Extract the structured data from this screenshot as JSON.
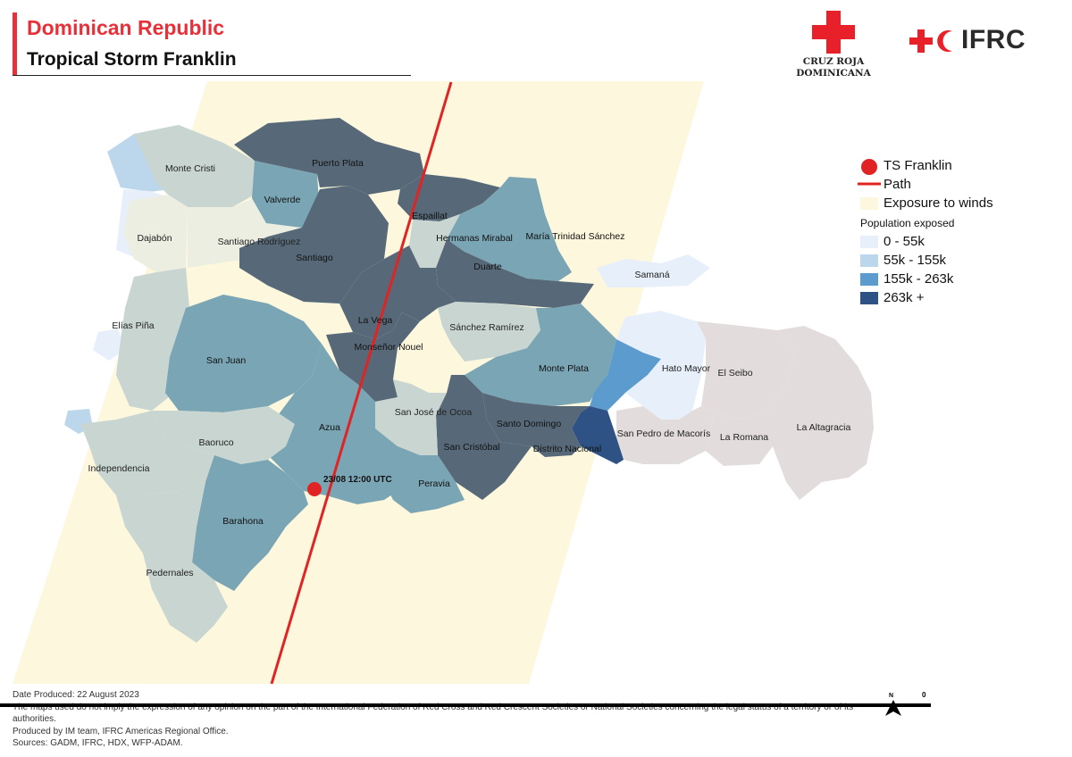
{
  "header": {
    "country": "Dominican Republic",
    "event": "Tropical Storm Franklin"
  },
  "logos": {
    "crd_text_line1": "CRUZ ROJA",
    "crd_text_line2": "DOMINICANA",
    "ifrc_text": "IFRC"
  },
  "colors": {
    "accent_red": "#e8303a",
    "exposure_zone": "#fdf7dd",
    "pop_0_55k": "#e7f0fa",
    "pop_55k_155k": "#bcd6ec",
    "pop_155k_263k": "#5b9bcd",
    "pop_263k_plus": "#2d5283",
    "province_dark": "#576978",
    "province_teal": "#7aa5b4",
    "province_sage": "#c8d5d1",
    "province_pale": "#eceee2",
    "province_outside": "#e2dcdd"
  },
  "provinces": {
    "monte_cristi": "Monte Cristi",
    "puerto_plata": "Puerto Plata",
    "valverde": "Valverde",
    "espaillat": "Espaillat",
    "dajabon": "Dajabón",
    "santiago_rodriguez": "Santiago Rodríguez",
    "santiago": "Santiago",
    "hermanas_mirabal": "Hermanas Mirabal",
    "maria_trinidad_sanchez": "María Trinidad Sánchez",
    "duarte": "Duarte",
    "samana": "Samaná",
    "la_vega": "La Vega",
    "elias_pina": "Elías Piña",
    "sanchez_ramirez": "Sánchez Ramírez",
    "monsenor_nouel": "Monseñor Nouel",
    "san_juan": "San Juan",
    "monte_plata": "Monte Plata",
    "hato_mayor": "Hato Mayor",
    "el_seibo": "El Seibo",
    "azua": "Azua",
    "san_jose_de_ocoa": "San José de Ocoa",
    "santo_domingo": "Santo Domingo",
    "la_altagracia": "La Altagracia",
    "baoruco": "Baoruco",
    "san_pedro_de_macoris": "San Pedro de Macorís",
    "san_cristobal": "San Cristóbal",
    "distrito_nacional": "Distrito Nacional",
    "la_romana": "La Romana",
    "independencia": "Independencia",
    "peravia": "Peravia",
    "barahona": "Barahona",
    "pedernales": "Pedernales"
  },
  "storm": {
    "point_label": "23/08 12:00 UTC"
  },
  "legend": {
    "ts_label": "TS Franklin",
    "path_label": "Path",
    "exposure_label": "Exposure to winds",
    "population_title": "Population exposed",
    "classes": [
      {
        "label": "0 - 55k",
        "color": "#e7f0fa"
      },
      {
        "label": "55k - 155k",
        "color": "#bcd6ec"
      },
      {
        "label": "155k - 263k",
        "color": "#5b9bcd"
      },
      {
        "label": "263k +",
        "color": "#2d5283"
      }
    ]
  },
  "footer": {
    "date_produced": "Date Produced: 22 August 2023",
    "disclaimer": "The maps used do not imply the expression of any opinion on the part of the International Federation of Red Cross and Red Crescent Societies or National Societies concerning the legal status of a territory or of its",
    "disclaimer_end": "authorities.",
    "produced_by": "Produced by IM team, IFRC Americas Regional Office.",
    "sources": "Sources: GADM, IFRC, HDX, WFP-ADAM."
  },
  "scale": {
    "north_label": "N",
    "zero_label": "0"
  }
}
